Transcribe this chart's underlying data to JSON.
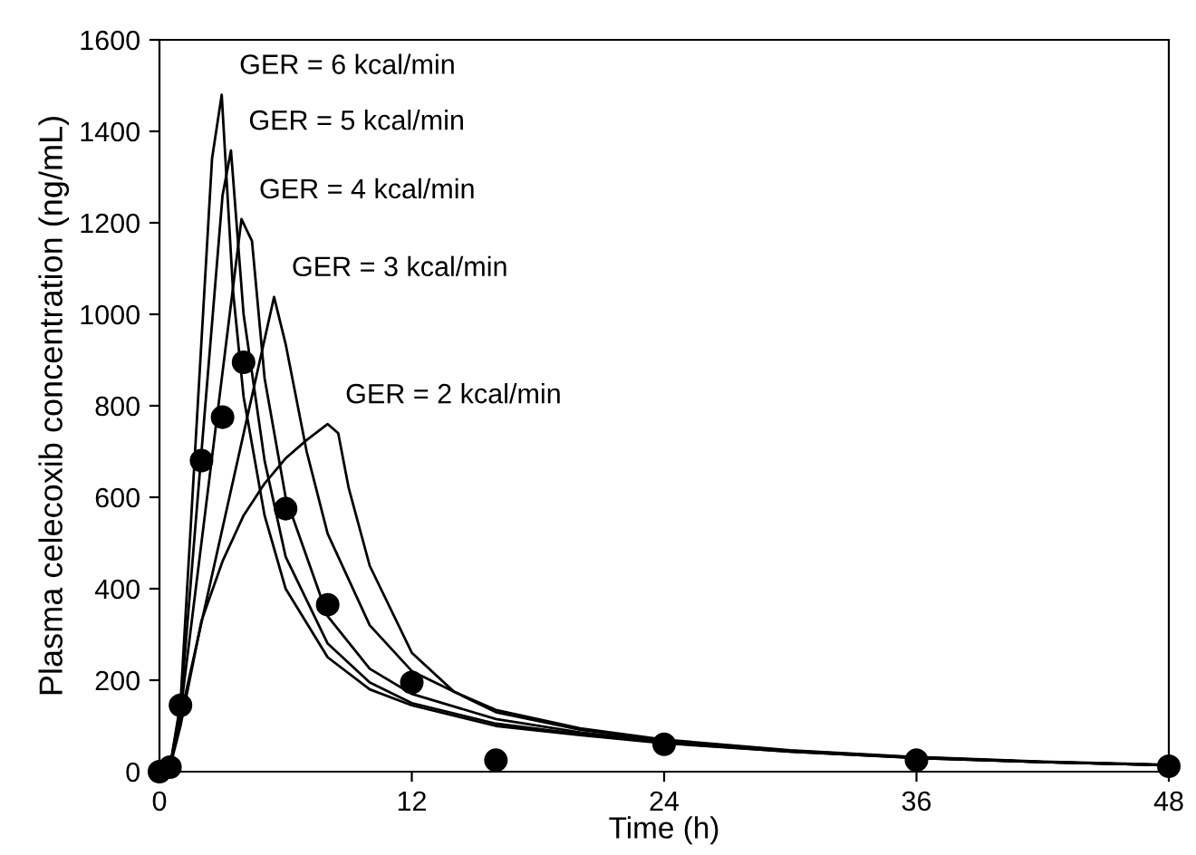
{
  "chart_data": {
    "type": "line",
    "xlabel": "Time (h)",
    "ylabel": "Plasma celecoxib concentration (ng/mL)",
    "xlim": [
      0,
      48
    ],
    "xticks": [
      0,
      12,
      24,
      36,
      48
    ],
    "ylim": [
      0,
      1600
    ],
    "yticks": [
      0,
      200,
      400,
      600,
      800,
      1000,
      1200,
      1400,
      1600
    ],
    "grid": false,
    "legend": false,
    "series": [
      {
        "name": "GER = 6 kcal/min",
        "color": "#000000",
        "marker": "none",
        "x": [
          0,
          0.5,
          1,
          2.5,
          2.96,
          3.5,
          4,
          5,
          6,
          8,
          10,
          12,
          16,
          20,
          24,
          30,
          36,
          42,
          48
        ],
        "values": [
          0,
          10,
          150,
          1340,
          1480,
          1050,
          820,
          560,
          400,
          250,
          180,
          145,
          100,
          80,
          62,
          44,
          30,
          21,
          14
        ]
      },
      {
        "name": "GER = 5 kcal/min",
        "color": "#000000",
        "marker": "none",
        "x": [
          0,
          0.5,
          1,
          3.0,
          3.4,
          4,
          5,
          6,
          8,
          10,
          12,
          16,
          20,
          24,
          30,
          36,
          42,
          48
        ],
        "values": [
          0,
          10,
          140,
          1260,
          1358,
          1000,
          680,
          470,
          280,
          195,
          150,
          105,
          82,
          63,
          44,
          30,
          21,
          14
        ]
      },
      {
        "name": "GER = 4 kcal/min",
        "color": "#000000",
        "marker": "none",
        "x": [
          0,
          0.5,
          1,
          3.9,
          4.4,
          5,
          6,
          8,
          10,
          12,
          16,
          20,
          24,
          30,
          36,
          42,
          48
        ],
        "values": [
          0,
          10,
          130,
          1208,
          1160,
          860,
          600,
          340,
          225,
          170,
          115,
          86,
          65,
          45,
          31,
          21,
          14
        ]
      },
      {
        "name": "GER = 3 kcal/min",
        "color": "#000000",
        "marker": "none",
        "x": [
          0,
          0.5,
          1,
          5.45,
          6.0,
          7,
          8,
          10,
          12,
          16,
          20,
          24,
          30,
          36,
          42,
          48
        ],
        "values": [
          0,
          10,
          120,
          1038,
          935,
          700,
          520,
          320,
          220,
          130,
          92,
          68,
          46,
          31,
          21,
          14
        ]
      },
      {
        "name": "GER = 2 kcal/min",
        "color": "#000000",
        "marker": "none",
        "x": [
          0,
          0.5,
          1,
          2,
          3,
          4,
          5,
          6,
          7,
          8,
          8.5,
          9,
          10,
          12,
          14,
          16,
          20,
          24,
          30,
          36,
          42,
          48
        ],
        "values": [
          0,
          10,
          100,
          330,
          460,
          560,
          630,
          685,
          725,
          760,
          740,
          620,
          450,
          260,
          175,
          135,
          95,
          70,
          47,
          32,
          22,
          15
        ]
      },
      {
        "type": "scatter",
        "color": "#000000",
        "marker": "circle",
        "x": [
          0,
          0.5,
          1,
          2,
          3,
          4,
          6,
          8,
          12,
          16,
          24,
          36,
          48
        ],
        "values": [
          0,
          10,
          145,
          680,
          775,
          895,
          575,
          365,
          195,
          25,
          60,
          25,
          12
        ]
      }
    ]
  }
}
